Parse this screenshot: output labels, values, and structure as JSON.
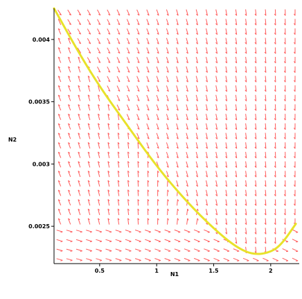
{
  "chart_data": {
    "type": "direction-field",
    "xlabel": "N1",
    "ylabel": "N2",
    "x_ticks": [
      {
        "value": 0.5,
        "label": "0.5"
      },
      {
        "value": 1,
        "label": "1"
      },
      {
        "value": 1.5,
        "label": "1.5"
      },
      {
        "value": 2,
        "label": "2"
      }
    ],
    "y_ticks": [
      {
        "value": 0.0025,
        "label": "0.0025"
      },
      {
        "value": 0.003,
        "label": "0.003"
      },
      {
        "value": 0.0035,
        "label": "0.0035"
      },
      {
        "value": 0.004,
        "label": "0.004"
      }
    ],
    "xlim": [
      0.1,
      2.25
    ],
    "ylim": [
      0.0022,
      0.00425
    ],
    "grid": false,
    "field_color": "#ff5a5a",
    "curve_color": "#e8e22a",
    "curve": {
      "name": "",
      "x": [
        0.1,
        0.3,
        0.5,
        0.75,
        1.0,
        1.25,
        1.5,
        1.7,
        1.85,
        2.0,
        2.1,
        2.22
      ],
      "y": [
        0.00425,
        0.00392,
        0.00362,
        0.0033,
        0.00298,
        0.00271,
        0.00248,
        0.00233,
        0.00227,
        0.00229,
        0.00236,
        0.00252
      ]
    }
  }
}
